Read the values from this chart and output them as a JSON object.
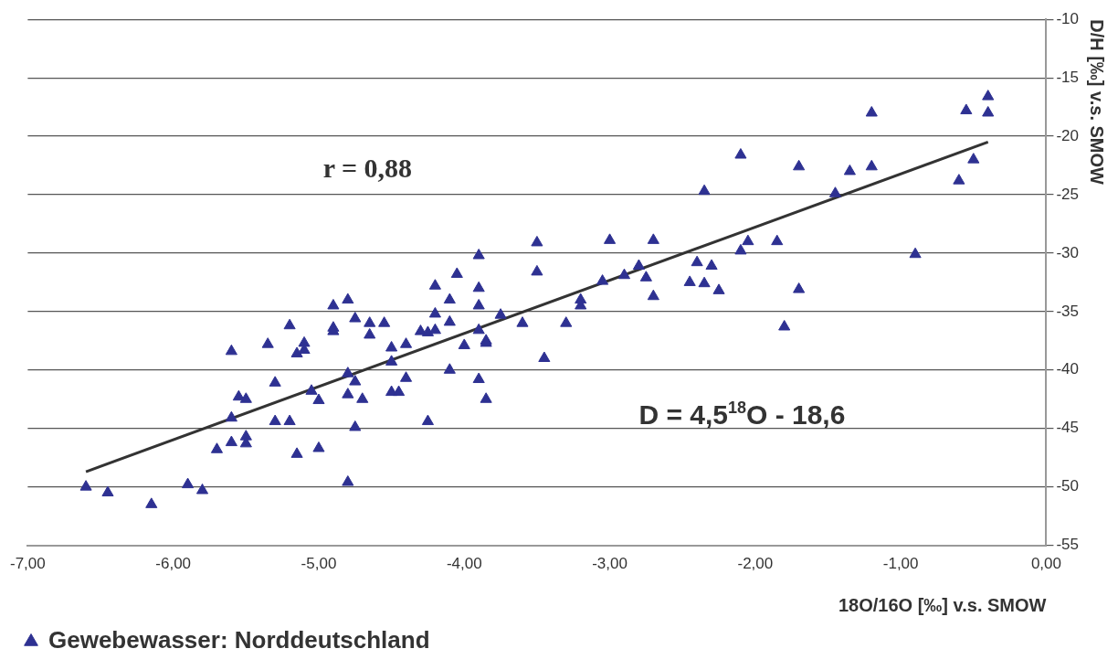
{
  "chart_data": {
    "type": "scatter",
    "xlabel": "18O/16O [‰] v.s. SMOW",
    "ylabel": "D/H [‰] v.s. SMOW",
    "xlim": [
      -7,
      0
    ],
    "xticks": [
      {
        "value": -7,
        "label": "-7,00"
      },
      {
        "value": -6,
        "label": "-6,00"
      },
      {
        "value": -5,
        "label": "-5,00"
      },
      {
        "value": -4,
        "label": "-4,00"
      },
      {
        "value": -3,
        "label": "-3,00"
      },
      {
        "value": -2,
        "label": "-2,00"
      },
      {
        "value": -1,
        "label": "-1,00"
      },
      {
        "value": 0,
        "label": "0,00"
      }
    ],
    "ylim": [
      -55,
      -10
    ],
    "yticks": [
      -55,
      -50,
      -45,
      -40,
      -35,
      -30,
      -25,
      -20,
      -15,
      -10
    ],
    "grid": "y",
    "legend": "bottom left",
    "annotations": [
      "r = 0,88",
      "D = 4,5$^{18}$O - 18,6"
    ],
    "series": [
      {
        "name": "Gewebewasser: Norddeutschland",
        "color": "#2e3192",
        "marker": "triangle",
        "x": [
          -6.6,
          -6.45,
          -6.15,
          -5.9,
          -5.8,
          -5.7,
          -5.6,
          -5.6,
          -5.6,
          -5.55,
          -5.5,
          -5.5,
          -5.5,
          -5.35,
          -5.3,
          -5.3,
          -5.2,
          -5.2,
          -5.15,
          -5.15,
          -5.1,
          -5.1,
          -5.05,
          -5.0,
          -5.0,
          -4.9,
          -4.9,
          -4.9,
          -4.8,
          -4.8,
          -4.8,
          -4.8,
          -4.75,
          -4.75,
          -4.75,
          -4.7,
          -4.65,
          -4.65,
          -4.55,
          -4.5,
          -4.5,
          -4.5,
          -4.45,
          -4.4,
          -4.4,
          -4.3,
          -4.25,
          -4.25,
          -4.2,
          -4.2,
          -4.2,
          -4.1,
          -4.1,
          -4.1,
          -4.05,
          -4.0,
          -3.9,
          -3.9,
          -3.9,
          -3.9,
          -3.9,
          -3.85,
          -3.85,
          -3.85,
          -3.75,
          -3.6,
          -3.5,
          -3.5,
          -3.45,
          -3.3,
          -3.2,
          -3.2,
          -3.05,
          -3.0,
          -2.9,
          -2.8,
          -2.75,
          -2.7,
          -2.7,
          -2.45,
          -2.4,
          -2.35,
          -2.35,
          -2.3,
          -2.25,
          -2.1,
          -2.1,
          -2.05,
          -1.85,
          -1.8,
          -1.7,
          -1.7,
          -1.45,
          -1.35,
          -1.2,
          -1.2,
          -0.9,
          -0.6,
          -0.55,
          -0.5,
          -0.4,
          -0.4
        ],
        "values": [
          -50,
          -50.5,
          -51.5,
          -49.8,
          -50.3,
          -46.8,
          -46.2,
          -44.1,
          -38.4,
          -42.3,
          -42.5,
          -45.7,
          -46.3,
          -37.8,
          -41.1,
          -44.4,
          -36.2,
          -44.4,
          -38.6,
          -47.2,
          -37.7,
          -38.3,
          -41.8,
          -42.6,
          -46.7,
          -34.5,
          -36.4,
          -36.7,
          -34,
          -40.3,
          -42.1,
          -49.6,
          -35.6,
          -41,
          -44.9,
          -42.5,
          -36,
          -37,
          -36,
          -38.1,
          -39.3,
          -41.9,
          -41.9,
          -37.8,
          -40.7,
          -36.7,
          -36.8,
          -44.4,
          -32.8,
          -35.2,
          -36.6,
          -34,
          -35.9,
          -40,
          -31.8,
          -37.9,
          -30.2,
          -33,
          -34.5,
          -36.6,
          -40.8,
          -37.5,
          -37.7,
          -42.5,
          -35.3,
          -36,
          -29.1,
          -31.6,
          -39,
          -36,
          -34,
          -34.5,
          -32.4,
          -28.9,
          -31.9,
          -31.1,
          -32.1,
          -28.9,
          -33.7,
          -32.5,
          -30.8,
          -24.7,
          -32.6,
          -31.1,
          -33.2,
          -21.6,
          -29.8,
          -29,
          -29,
          -36.3,
          -22.6,
          -33.1,
          -24.9,
          -23,
          -18,
          -22.6,
          -30.1,
          -23.8,
          -17.8,
          -22,
          -16.6,
          -18
        ]
      },
      {
        "color": "#333333",
        "type": "line",
        "x": [
          -6.6,
          -0.4
        ],
        "values": [
          -48.7,
          -20.5
        ]
      }
    ]
  }
}
